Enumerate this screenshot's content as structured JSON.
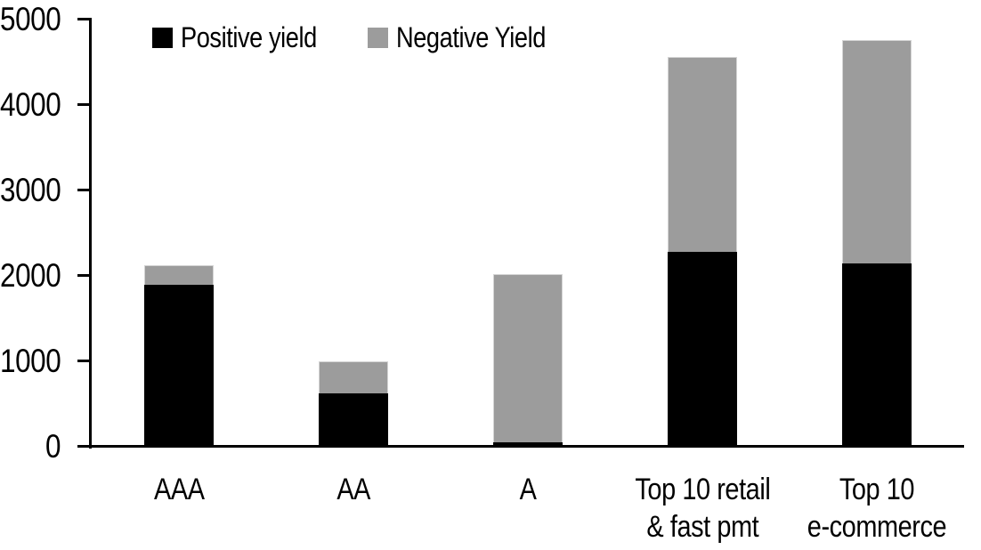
{
  "chart_data": {
    "type": "bar",
    "stacked": true,
    "title": "",
    "xlabel": "",
    "ylabel": "",
    "categories": [
      "AAA",
      "AA",
      "A",
      "Top 10 retail\n& fast pmt",
      "Top 10\ne-commerce"
    ],
    "series": [
      {
        "name": "Positive yield",
        "color": "#000000",
        "values": [
          1900,
          625,
          50,
          2280,
          2150
        ]
      },
      {
        "name": "Negative Yield",
        "color": "#9c9c9c",
        "values": [
          220,
          375,
          1975,
          2280,
          2610
        ]
      }
    ],
    "ylim": [
      0,
      5000
    ],
    "yticks": [
      0,
      1000,
      2000,
      3000,
      4000,
      5000
    ],
    "ytick_labels": [
      "0",
      "1000",
      "2000",
      "3000",
      "4000",
      "5000"
    ],
    "legend_position": "top",
    "grid": false,
    "colors": {
      "axis": "#000000",
      "bar_border": "#d4d4d4",
      "text": "#000000",
      "background": "#ffffff"
    }
  }
}
